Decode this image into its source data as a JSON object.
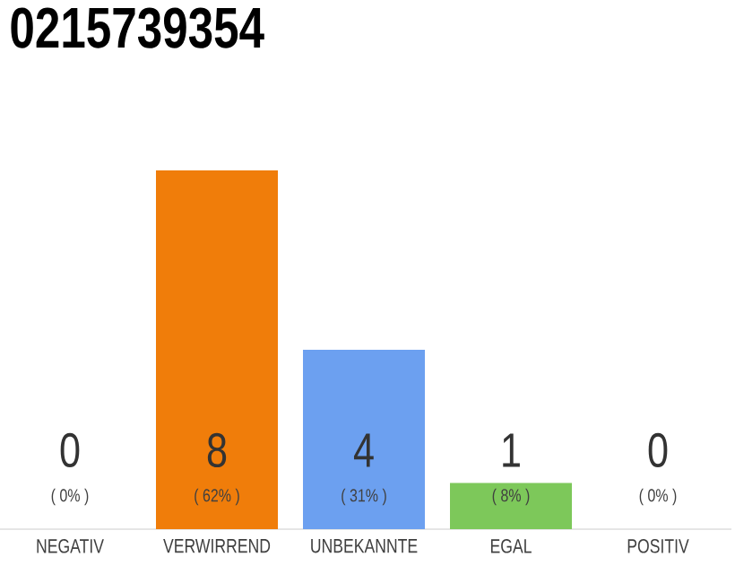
{
  "chart_data": {
    "type": "bar",
    "title": "0215739354",
    "categories": [
      "NEGATIV",
      "VERWIRREND",
      "UNBEKANNTE",
      "EGAL",
      "POSITIV"
    ],
    "values": [
      0,
      62,
      31,
      8,
      0
    ],
    "colors": [
      "#cccccc",
      "#f07d0a",
      "#6ca0f0",
      "#7dc85a",
      "#cccccc"
    ],
    "value_labels": [
      "( 0% )",
      "( 62% )",
      "( 31% )",
      "( 8% )",
      "( 0% )"
    ],
    "annotations": [
      "0",
      "8",
      "4",
      "1",
      "0"
    ],
    "tick_labels": "x"
  }
}
